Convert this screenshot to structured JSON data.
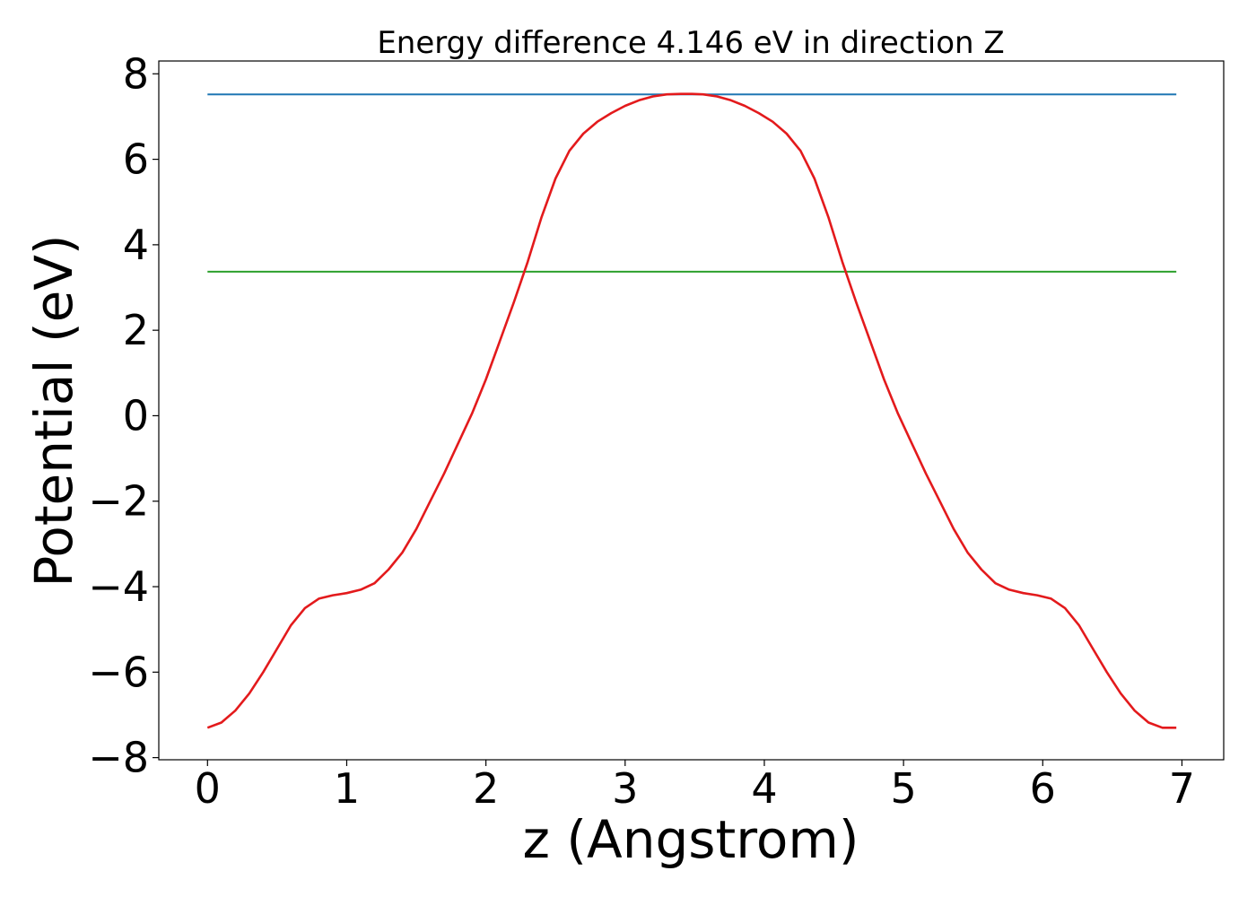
{
  "chart_data": {
    "type": "line",
    "title": "Energy difference 4.146 eV in direction Z",
    "xlabel": "z (Angstrom)",
    "ylabel": "Potential (eV)",
    "xlim": [
      -0.35,
      7.3
    ],
    "ylim": [
      -8.05,
      8.3
    ],
    "xticks": [
      0,
      1,
      2,
      3,
      4,
      5,
      6,
      7
    ],
    "xtick_labels": [
      "0",
      "1",
      "2",
      "3",
      "4",
      "5",
      "6",
      "7"
    ],
    "yticks": [
      8,
      6,
      4,
      2,
      0,
      -2,
      -4,
      -6,
      -8
    ],
    "ytick_labels": [
      "8",
      "6",
      "4",
      "2",
      "0",
      "−2",
      "−4",
      "−6",
      "−8"
    ],
    "grid": false,
    "series": [
      {
        "color": "#1f77b4",
        "x": [
          0,
          6.96
        ],
        "y": [
          7.52,
          7.52
        ]
      },
      {
        "color": "#2ca02c",
        "x": [
          0,
          6.96
        ],
        "y": [
          3.37,
          3.37
        ]
      },
      {
        "color": "#e31a1c",
        "x": [
          0,
          0.1,
          0.2,
          0.3,
          0.4,
          0.5,
          0.6,
          0.7,
          0.8,
          0.9,
          1.0,
          1.1,
          1.2,
          1.3,
          1.4,
          1.5,
          1.6,
          1.7,
          1.8,
          1.9,
          2.0,
          2.1,
          2.2,
          2.3,
          2.4,
          2.5,
          2.6,
          2.7,
          2.8,
          2.9,
          3.0,
          3.1,
          3.2,
          3.3,
          3.4,
          3.48,
          3.56,
          3.66,
          3.76,
          3.86,
          3.96,
          4.06,
          4.16,
          4.26,
          4.36,
          4.46,
          4.56,
          4.66,
          4.76,
          4.86,
          4.96,
          5.06,
          5.16,
          5.26,
          5.36,
          5.46,
          5.56,
          5.66,
          5.76,
          5.86,
          5.96,
          6.06,
          6.16,
          6.26,
          6.36,
          6.46,
          6.56,
          6.66,
          6.76,
          6.86,
          6.96
        ],
        "y": [
          -7.3,
          -7.18,
          -6.9,
          -6.5,
          -6.0,
          -5.45,
          -4.9,
          -4.5,
          -4.28,
          -4.2,
          -4.15,
          -4.07,
          -3.92,
          -3.6,
          -3.2,
          -2.65,
          -2.0,
          -1.35,
          -0.65,
          0.05,
          0.85,
          1.75,
          2.65,
          3.6,
          4.65,
          5.55,
          6.2,
          6.6,
          6.88,
          7.08,
          7.25,
          7.38,
          7.47,
          7.52,
          7.53,
          7.53,
          7.52,
          7.47,
          7.38,
          7.25,
          7.08,
          6.88,
          6.6,
          6.2,
          5.55,
          4.65,
          3.6,
          2.65,
          1.75,
          0.85,
          0.05,
          -0.65,
          -1.35,
          -2.0,
          -2.65,
          -3.2,
          -3.6,
          -3.92,
          -4.07,
          -4.15,
          -4.2,
          -4.28,
          -4.5,
          -4.9,
          -5.45,
          -6.0,
          -6.5,
          -6.9,
          -7.18,
          -7.3,
          -7.3
        ]
      }
    ]
  }
}
